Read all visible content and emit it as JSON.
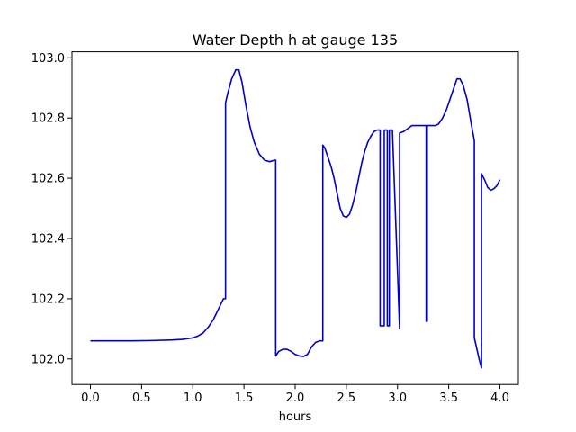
{
  "chart_data": {
    "type": "line",
    "title": "Water Depth h at gauge 135",
    "xlabel": "hours",
    "ylabel": "",
    "xlim": [
      -0.18,
      4.18
    ],
    "ylim": [
      101.915,
      103.02
    ],
    "xticks": [
      0.0,
      0.5,
      1.0,
      1.5,
      2.0,
      2.5,
      3.0,
      3.5,
      4.0
    ],
    "xtick_labels": [
      "0.0",
      "0.5",
      "1.0",
      "1.5",
      "2.0",
      "2.5",
      "3.0",
      "3.5",
      "4.0"
    ],
    "yticks": [
      102.0,
      102.2,
      102.4,
      102.6,
      102.8,
      103.0
    ],
    "ytick_labels": [
      "102.0",
      "102.2",
      "102.4",
      "102.6",
      "102.8",
      "103.0"
    ],
    "grid": false,
    "series": [
      {
        "color": "#0000cc",
        "x": [
          0.0,
          0.2,
          0.4,
          0.6,
          0.8,
          0.9,
          1.0,
          1.05,
          1.1,
          1.15,
          1.2,
          1.25,
          1.3,
          1.32,
          1.32,
          1.34,
          1.38,
          1.42,
          1.45,
          1.48,
          1.52,
          1.56,
          1.6,
          1.65,
          1.7,
          1.75,
          1.8,
          1.81,
          1.81,
          1.84,
          1.88,
          1.92,
          1.96,
          2.0,
          2.04,
          2.08,
          2.12,
          2.16,
          2.2,
          2.24,
          2.27,
          2.27,
          2.29,
          2.32,
          2.35,
          2.38,
          2.41,
          2.44,
          2.47,
          2.5,
          2.53,
          2.56,
          2.59,
          2.62,
          2.65,
          2.68,
          2.71,
          2.74,
          2.77,
          2.8,
          2.83,
          2.83,
          2.87,
          2.87,
          2.9,
          2.9,
          2.92,
          2.92,
          2.95,
          3.02,
          3.02,
          3.06,
          3.1,
          3.14,
          3.18,
          3.22,
          3.26,
          3.28,
          3.28,
          3.29,
          3.29,
          3.33,
          3.37,
          3.4,
          3.44,
          3.48,
          3.52,
          3.55,
          3.58,
          3.61,
          3.64,
          3.68,
          3.72,
          3.75,
          3.75,
          3.8,
          3.82,
          3.82,
          3.85,
          3.88,
          3.91,
          3.94,
          3.97,
          4.0
        ],
        "y": [
          102.06,
          102.06,
          102.06,
          102.061,
          102.063,
          102.065,
          102.07,
          102.076,
          102.086,
          102.105,
          102.13,
          102.165,
          102.2,
          102.2,
          102.85,
          102.88,
          102.93,
          102.96,
          102.96,
          102.92,
          102.84,
          102.77,
          102.72,
          102.68,
          102.66,
          102.655,
          102.66,
          102.66,
          102.01,
          102.025,
          102.032,
          102.032,
          102.025,
          102.015,
          102.01,
          102.008,
          102.015,
          102.04,
          102.055,
          102.06,
          102.06,
          102.71,
          102.7,
          102.67,
          102.64,
          102.6,
          102.55,
          102.5,
          102.475,
          102.47,
          102.48,
          102.51,
          102.55,
          102.6,
          102.65,
          102.69,
          102.72,
          102.74,
          102.755,
          102.76,
          102.76,
          102.11,
          102.11,
          102.76,
          102.76,
          102.11,
          102.11,
          102.76,
          102.76,
          102.1,
          102.75,
          102.755,
          102.765,
          102.775,
          102.775,
          102.775,
          102.775,
          102.775,
          102.125,
          102.125,
          102.775,
          102.775,
          102.775,
          102.78,
          102.8,
          102.83,
          102.87,
          102.9,
          102.93,
          102.93,
          102.91,
          102.86,
          102.78,
          102.725,
          102.07,
          101.995,
          101.97,
          102.615,
          102.595,
          102.57,
          102.56,
          102.565,
          102.575,
          102.595
        ]
      }
    ]
  }
}
